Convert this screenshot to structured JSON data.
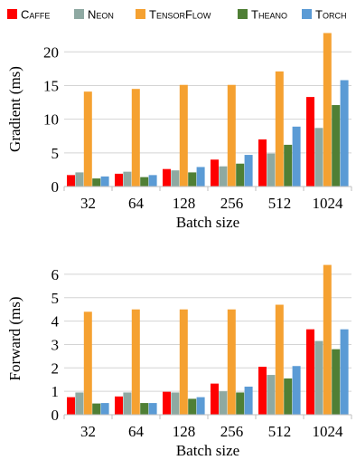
{
  "legend": {
    "placement": "top",
    "items": [
      {
        "name": "Caffe",
        "color": "#ff0000"
      },
      {
        "name": "Neon",
        "color": "#8ea9a2"
      },
      {
        "name": "TensorFlow",
        "color": "#f5a131"
      },
      {
        "name": "Theano",
        "color": "#4f7f35"
      },
      {
        "name": "Torch",
        "color": "#5b9bd5"
      }
    ]
  },
  "chart_data": [
    {
      "type": "bar",
      "ylabel": "Gradient (ms)",
      "xlabel": "Batch size",
      "categories": [
        "32",
        "64",
        "128",
        "256",
        "512",
        "1024"
      ],
      "ylim": [
        0,
        23
      ],
      "yticks": [
        0,
        5,
        10,
        15,
        20
      ],
      "grid": true,
      "series": [
        {
          "name": "Caffe",
          "values": [
            1.7,
            1.9,
            2.6,
            4.0,
            7.0,
            13.3
          ]
        },
        {
          "name": "Neon",
          "values": [
            2.1,
            2.2,
            2.4,
            3.0,
            4.9,
            8.7
          ]
        },
        {
          "name": "TensorFlow",
          "values": [
            14.1,
            14.5,
            15.1,
            15.1,
            17.1,
            22.8
          ]
        },
        {
          "name": "Theano",
          "values": [
            1.2,
            1.4,
            2.1,
            3.4,
            6.2,
            12.1
          ]
        },
        {
          "name": "Torch",
          "values": [
            1.5,
            1.7,
            2.9,
            4.7,
            8.9,
            15.8
          ]
        }
      ]
    },
    {
      "type": "bar",
      "ylabel": "Forward (ms)",
      "xlabel": "Batch size",
      "categories": [
        "32",
        "64",
        "128",
        "256",
        "512",
        "1024"
      ],
      "ylim": [
        0,
        6.5
      ],
      "yticks": [
        0,
        1,
        2,
        3,
        4,
        5,
        6
      ],
      "grid": true,
      "series": [
        {
          "name": "Caffe",
          "values": [
            0.75,
            0.78,
            0.98,
            1.33,
            2.05,
            3.65
          ]
        },
        {
          "name": "Neon",
          "values": [
            0.95,
            0.95,
            0.95,
            1.0,
            1.7,
            3.15
          ]
        },
        {
          "name": "TensorFlow",
          "values": [
            4.4,
            4.5,
            4.5,
            4.5,
            4.7,
            6.4
          ]
        },
        {
          "name": "Theano",
          "values": [
            0.48,
            0.5,
            0.68,
            0.95,
            1.55,
            2.8
          ]
        },
        {
          "name": "Torch",
          "values": [
            0.5,
            0.5,
            0.75,
            1.2,
            2.08,
            3.65
          ]
        }
      ]
    }
  ]
}
